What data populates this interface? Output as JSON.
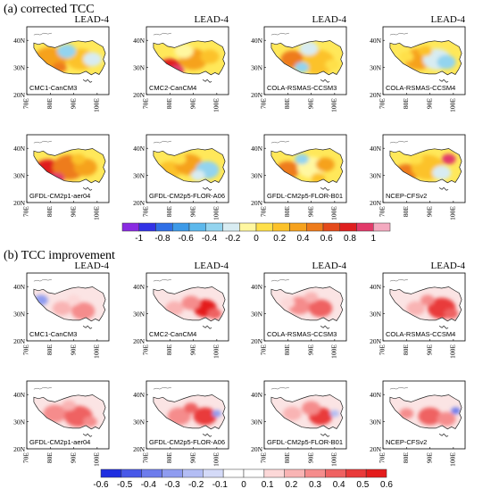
{
  "sections": [
    {
      "title": "(a) corrected TCC",
      "lead": "LEAD-4",
      "panels": [
        {
          "model": "CMC1-CanCM3",
          "pattern": "tcc_a"
        },
        {
          "model": "CMC2-CanCM4",
          "pattern": "tcc_b"
        },
        {
          "model": "COLA-RSMAS-CCSM3",
          "pattern": "tcc_c"
        },
        {
          "model": "COLA-RSMAS-CCSM4",
          "pattern": "tcc_d"
        },
        {
          "model": "GFDL-CM2p1-aer04",
          "pattern": "tcc_e"
        },
        {
          "model": "GFDL-CM2p5-FLOR-A06",
          "pattern": "tcc_f"
        },
        {
          "model": "GFDL-CM2p5-FLOR-B01",
          "pattern": "tcc_g"
        },
        {
          "model": "NCEP-CFSv2",
          "pattern": "tcc_h"
        }
      ],
      "colorbar": {
        "ticks": [
          "-1",
          "-0.8",
          "-0.6",
          "-0.4",
          "-0.2",
          "0",
          "0.2",
          "0.4",
          "0.6",
          "0.8",
          "1"
        ],
        "colors": [
          "#8a2be2",
          "#3232e6",
          "#2f6fe6",
          "#3d9ae8",
          "#5cb8ec",
          "#93d4ef",
          "#d8ecf2",
          "#fff7a0",
          "#ffe04a",
          "#fcc22a",
          "#f6a21e",
          "#ee7b1a",
          "#e54a1a",
          "#df1f1f",
          "#e23a6a",
          "#f4aac0"
        ]
      }
    },
    {
      "title": "(b) TCC improvement",
      "lead": "LEAD-4",
      "panels": [
        {
          "model": "CMC1-CanCM3",
          "pattern": "imp_a"
        },
        {
          "model": "CMC2-CanCM4",
          "pattern": "imp_b"
        },
        {
          "model": "COLA-RSMAS-CCSM3",
          "pattern": "imp_c"
        },
        {
          "model": "COLA-RSMAS-CCSM4",
          "pattern": "imp_d"
        },
        {
          "model": "GFDL-CM2p1-aer04",
          "pattern": "imp_e"
        },
        {
          "model": "GFDL-CM2p5-FLOR-A06",
          "pattern": "imp_f"
        },
        {
          "model": "GFDL-CM2p5-FLOR-B01",
          "pattern": "imp_g"
        },
        {
          "model": "NCEP-CFSv2",
          "pattern": "imp_h"
        }
      ],
      "colorbar": {
        "ticks": [
          "-0.6",
          "-0.5",
          "-0.4",
          "-0.3",
          "-0.2",
          "-0.1",
          "0",
          "0.1",
          "0.2",
          "0.3",
          "0.4",
          "0.5",
          "0.6"
        ],
        "colors": [
          "#1f2ee0",
          "#4858e8",
          "#6d7cec",
          "#8f9cf0",
          "#b3bdf4",
          "#d4daf8",
          "#ffffff",
          "#ffffff",
          "#fcd8d8",
          "#f9b4b4",
          "#f58c8c",
          "#ef6262",
          "#e93a3a",
          "#e41c1c"
        ]
      }
    }
  ],
  "axes": {
    "y_labels": [
      "40N",
      "30N",
      "20N"
    ],
    "x_labels": [
      "70E",
      "80E",
      "90E",
      "100E"
    ]
  }
}
